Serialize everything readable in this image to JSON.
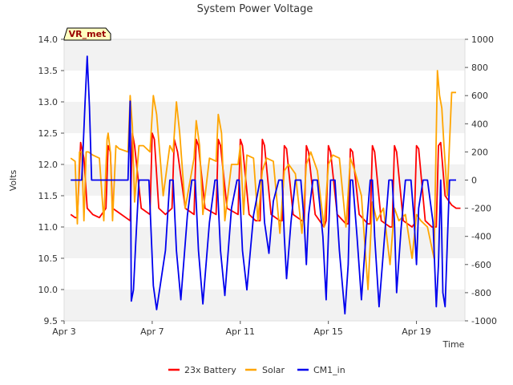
{
  "chart_data": {
    "type": "line",
    "title": "System Power Voltage",
    "xlabel": "Time",
    "ylabel": "Volts",
    "badge": "VR_met",
    "x_unit": "day of April",
    "xlim": [
      3,
      21.2
    ],
    "ylim": [
      9.5,
      14.0
    ],
    "ylim_right": [
      -1000,
      1000
    ],
    "x_ticks": [
      3,
      7,
      11,
      15,
      19
    ],
    "x_tick_labels": [
      "Apr 3",
      "Apr 7",
      "Apr 11",
      "Apr 15",
      "Apr 19"
    ],
    "y_ticks": [
      9.5,
      10.0,
      10.5,
      11.0,
      11.5,
      12.0,
      12.5,
      13.0,
      13.5,
      14.0
    ],
    "y_tick_labels": [
      "9.5",
      "10.0",
      "10.5",
      "11.0",
      "11.5",
      "12.0",
      "12.5",
      "13.0",
      "13.5",
      "14.0"
    ],
    "y2_ticks": [
      -1000,
      -800,
      -600,
      -400,
      -200,
      0,
      200,
      400,
      600,
      800,
      1000
    ],
    "y2_tick_labels": [
      "-1000",
      "-800",
      "-600",
      "-400",
      "-200",
      "0",
      "200",
      "400",
      "600",
      "800",
      "1000"
    ],
    "bands": [
      [
        9.5,
        10.0
      ],
      [
        10.5,
        11.0
      ],
      [
        11.5,
        12.0
      ],
      [
        12.5,
        13.0
      ],
      [
        13.5,
        14.0
      ]
    ],
    "legend_position": "bottom-center",
    "series": [
      {
        "name": "23x Battery",
        "axis": "left",
        "color": "#ff0000",
        "x": [
          3.3,
          3.5,
          3.6,
          3.75,
          3.9,
          4.05,
          4.3,
          4.6,
          4.9,
          5.0,
          5.1,
          5.2,
          5.6,
          6.0,
          6.1,
          6.2,
          6.5,
          6.9,
          7.0,
          7.1,
          7.3,
          7.6,
          7.9,
          8.0,
          8.15,
          8.5,
          8.9,
          9.0,
          9.1,
          9.4,
          9.9,
          10.0,
          10.1,
          10.4,
          10.9,
          11.0,
          11.1,
          11.4,
          11.7,
          11.9,
          12.0,
          12.1,
          12.4,
          12.8,
          12.9,
          13.0,
          13.1,
          13.4,
          13.8,
          13.9,
          14.0,
          14.1,
          14.4,
          14.8,
          14.9,
          15.0,
          15.1,
          15.4,
          15.8,
          15.9,
          16.0,
          16.1,
          16.4,
          16.8,
          16.9,
          17.0,
          17.1,
          17.4,
          17.8,
          17.9,
          18.0,
          18.1,
          18.4,
          18.8,
          18.9,
          19.0,
          19.1,
          19.4,
          19.7,
          19.9,
          20.0,
          20.1,
          20.3,
          20.6,
          20.8,
          21.0
        ],
        "values": [
          11.2,
          11.15,
          11.15,
          12.35,
          12.1,
          11.3,
          11.2,
          11.15,
          11.3,
          12.3,
          12.2,
          11.3,
          11.2,
          11.1,
          12.5,
          12.3,
          11.3,
          11.2,
          12.5,
          12.4,
          11.3,
          11.2,
          11.3,
          12.4,
          12.2,
          11.3,
          11.2,
          12.4,
          12.3,
          11.3,
          11.2,
          12.4,
          12.3,
          11.3,
          11.2,
          12.4,
          12.3,
          11.2,
          11.1,
          11.1,
          12.4,
          12.3,
          11.2,
          11.1,
          11.1,
          12.3,
          12.25,
          11.2,
          11.1,
          11.1,
          12.3,
          12.2,
          11.2,
          11.0,
          11.1,
          12.3,
          12.2,
          11.2,
          11.05,
          11.05,
          12.25,
          12.2,
          11.2,
          11.05,
          11.05,
          12.3,
          12.2,
          11.1,
          11.0,
          11.0,
          12.3,
          12.2,
          11.1,
          11.0,
          11.05,
          12.3,
          12.25,
          11.1,
          11.0,
          11.0,
          12.3,
          12.35,
          11.5,
          11.35,
          11.3,
          11.3
        ]
      },
      {
        "name": "Solar",
        "axis": "left",
        "color": "#ffa500",
        "x": [
          3.3,
          3.5,
          3.6,
          3.7,
          3.8,
          3.9,
          4.0,
          4.1,
          4.3,
          4.6,
          4.8,
          4.95,
          5.0,
          5.1,
          5.2,
          5.35,
          5.5,
          5.9,
          6.0,
          6.1,
          6.2,
          6.4,
          6.6,
          6.9,
          7.05,
          7.2,
          7.5,
          7.8,
          7.95,
          8.1,
          8.25,
          8.5,
          8.9,
          9.0,
          9.15,
          9.3,
          9.6,
          9.9,
          10.0,
          10.15,
          10.3,
          10.6,
          10.9,
          11.0,
          11.15,
          11.3,
          11.6,
          11.8,
          12.0,
          12.2,
          12.5,
          12.8,
          13.0,
          13.2,
          13.5,
          13.8,
          14.0,
          14.2,
          14.5,
          14.8,
          15.0,
          15.2,
          15.5,
          15.8,
          16.0,
          16.2,
          16.5,
          16.8,
          17.0,
          17.2,
          17.5,
          17.8,
          18.0,
          18.2,
          18.5,
          18.8,
          19.0,
          19.2,
          19.5,
          19.8,
          19.95,
          20.05,
          20.15,
          20.25,
          20.4,
          20.6,
          20.8
        ],
        "values": [
          12.1,
          12.05,
          11.05,
          12.2,
          12.2,
          11.1,
          12.2,
          12.2,
          12.15,
          12.1,
          11.1,
          12.4,
          12.5,
          12.2,
          11.1,
          12.3,
          12.25,
          12.2,
          13.1,
          12.6,
          11.4,
          12.3,
          12.3,
          12.2,
          13.1,
          12.8,
          11.5,
          12.3,
          12.2,
          13.0,
          12.5,
          11.3,
          12.1,
          12.7,
          12.3,
          11.2,
          12.1,
          12.05,
          12.8,
          12.5,
          11.1,
          12.0,
          12.0,
          12.3,
          11.2,
          12.15,
          12.1,
          11.1,
          11.9,
          12.1,
          12.05,
          10.9,
          11.9,
          12.0,
          11.85,
          10.9,
          12.0,
          12.2,
          11.9,
          11.0,
          12.0,
          12.15,
          12.1,
          11.0,
          12.1,
          11.9,
          11.5,
          10.0,
          11.4,
          11.1,
          11.3,
          10.4,
          11.3,
          11.1,
          11.2,
          10.5,
          11.2,
          11.1,
          11.0,
          10.5,
          13.5,
          13.1,
          12.9,
          12.3,
          11.5,
          13.15,
          13.15
        ]
      },
      {
        "name": "CM1_in",
        "axis": "right",
        "color": "#0000ee",
        "x": [
          3.3,
          3.8,
          3.95,
          4.05,
          4.15,
          4.25,
          4.35,
          4.5,
          5.9,
          6.0,
          6.05,
          6.15,
          6.25,
          6.4,
          6.6,
          6.85,
          7.05,
          7.2,
          7.6,
          7.8,
          7.95,
          8.1,
          8.3,
          8.6,
          8.8,
          8.95,
          9.1,
          9.3,
          9.6,
          9.85,
          9.95,
          10.1,
          10.3,
          10.6,
          10.85,
          10.95,
          11.1,
          11.3,
          11.6,
          11.9,
          12.0,
          12.1,
          12.3,
          12.5,
          12.75,
          12.9,
          13.0,
          13.1,
          13.3,
          13.5,
          13.75,
          13.9,
          14.0,
          14.1,
          14.3,
          14.5,
          14.75,
          14.9,
          15.0,
          15.1,
          15.3,
          15.5,
          15.75,
          15.9,
          16.0,
          16.1,
          16.3,
          16.5,
          16.75,
          16.9,
          17.0,
          17.1,
          17.3,
          17.5,
          17.75,
          17.9,
          18.0,
          18.1,
          18.3,
          18.5,
          18.75,
          18.9,
          19.0,
          19.1,
          19.3,
          19.5,
          19.75,
          19.9,
          20.0,
          20.1,
          20.2,
          20.3,
          20.5,
          20.8
        ],
        "values": [
          0,
          0,
          550,
          880,
          520,
          0,
          0,
          0,
          0,
          560,
          -860,
          -780,
          -450,
          0,
          0,
          0,
          -750,
          -920,
          -500,
          0,
          0,
          -500,
          -850,
          -250,
          0,
          0,
          -500,
          -880,
          -300,
          0,
          0,
          -500,
          -820,
          -200,
          0,
          0,
          -500,
          -780,
          -250,
          0,
          0,
          -300,
          -520,
          -150,
          0,
          0,
          -400,
          -700,
          -300,
          0,
          0,
          -300,
          -600,
          -250,
          0,
          0,
          -400,
          -850,
          -400,
          0,
          0,
          -500,
          -950,
          -600,
          0,
          0,
          -400,
          -850,
          -300,
          0,
          0,
          -400,
          -900,
          -500,
          0,
          0,
          -300,
          -800,
          -350,
          0,
          0,
          -300,
          -600,
          -200,
          0,
          0,
          -300,
          -900,
          -600,
          0,
          -800,
          -900,
          0,
          0
        ]
      }
    ]
  }
}
